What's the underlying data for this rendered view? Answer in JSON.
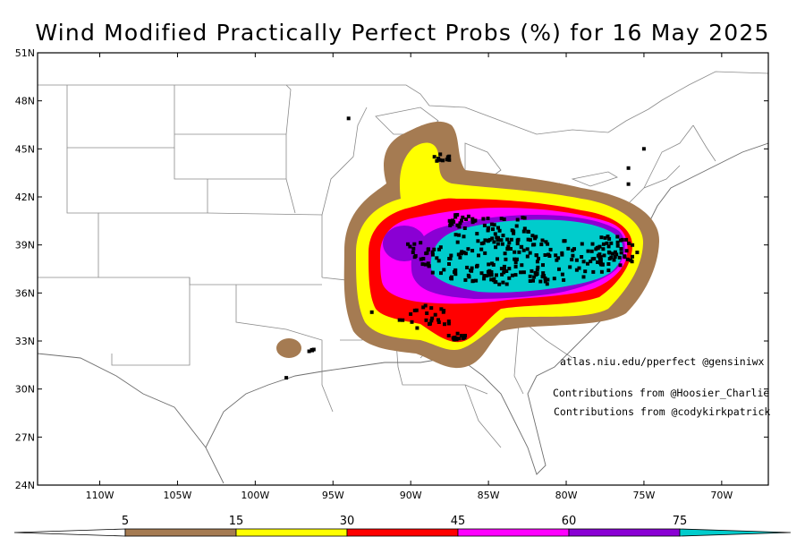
{
  "title": "Wind Modified Practically Perfect Probs (%) for 16 May 2025",
  "axes": {
    "lat_labels": [
      "51N",
      "48N",
      "45N",
      "42N",
      "39N",
      "36N",
      "33N",
      "30N",
      "27N",
      "24N"
    ],
    "lon_labels": [
      "110W",
      "105W",
      "100W",
      "95W",
      "90W",
      "85W",
      "80W",
      "75W",
      "70W"
    ]
  },
  "credits": {
    "site": "atlas.niu.edu/pperfect @gensiniwx",
    "contrib1": "Contributions from @Hoosier_Charlie",
    "contrib2": "Contributions from @codykirkpatrick"
  },
  "legend": {
    "labels": [
      "5",
      "15",
      "30",
      "45",
      "60",
      "75"
    ],
    "colors": [
      "#a57b52",
      "#ffff00",
      "#ff0000",
      "#ff00ff",
      "#8a00d4",
      "#00cccc"
    ]
  },
  "map_extent": {
    "lon_min": -114,
    "lon_max": -67,
    "lat_min": 24,
    "lat_max": 51
  },
  "contour_colors": {
    "p5": "#a57b52",
    "p15": "#ffff00",
    "p30": "#ff0000",
    "p45": "#ff00ff",
    "p60": "#8a00d4",
    "p75": "#00cccc"
  },
  "report_clusters": [
    {
      "lon": -83.0,
      "lat": 38.0,
      "rx": 6.5,
      "ry": 1.5,
      "n": 200
    },
    {
      "lon": -84.5,
      "lat": 40.0,
      "rx": 3.0,
      "ry": 1.0,
      "n": 50
    },
    {
      "lon": -77.0,
      "lat": 38.6,
      "rx": 1.6,
      "ry": 1.0,
      "n": 50
    },
    {
      "lon": -89.5,
      "lat": 38.8,
      "rx": 0.8,
      "ry": 0.6,
      "n": 12
    },
    {
      "lon": -89.0,
      "lat": 34.5,
      "rx": 1.8,
      "ry": 0.8,
      "n": 25
    },
    {
      "lon": -87.0,
      "lat": 33.4,
      "rx": 0.6,
      "ry": 0.4,
      "n": 12
    },
    {
      "lon": -88.0,
      "lat": 44.3,
      "rx": 0.7,
      "ry": 0.4,
      "n": 10
    },
    {
      "lon": -87.0,
      "lat": 40.5,
      "rx": 0.6,
      "ry": 0.5,
      "n": 12
    },
    {
      "lon": -96.5,
      "lat": 32.4,
      "rx": 0.3,
      "ry": 0.2,
      "n": 4
    }
  ],
  "single_reports": [
    {
      "lon": -94.0,
      "lat": 46.9
    },
    {
      "lon": -98.0,
      "lat": 30.7
    },
    {
      "lon": -75.0,
      "lat": 45.0
    },
    {
      "lon": -76.0,
      "lat": 43.8
    },
    {
      "lon": -76.0,
      "lat": 42.8
    },
    {
      "lon": -92.5,
      "lat": 34.8
    }
  ]
}
